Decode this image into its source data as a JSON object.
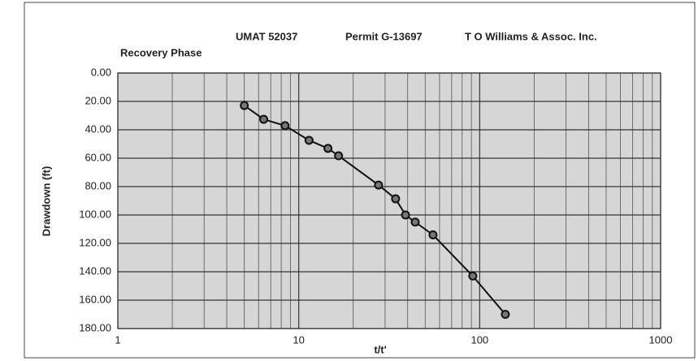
{
  "chart_data": {
    "type": "line",
    "title": [
      "UMAT 52037",
      "Permit G-13697",
      "T O Williams & Assoc. Inc."
    ],
    "subtitle": "Recovery Phase",
    "x_label": "t/t'",
    "y_label": "Drawdown (ft)",
    "x": [
      5,
      6.4,
      8.4,
      11.4,
      14.5,
      16.6,
      27.6,
      34.3,
      38.9,
      44,
      55.2,
      91.6,
      138.6
    ],
    "series": [
      {
        "color": "#111111",
        "values": [
          22.9,
          32.6,
          37.1,
          47.4,
          53.1,
          58.3,
          78.9,
          88.6,
          100,
          105,
          114,
          143,
          170
        ]
      }
    ],
    "xlim": [
      1,
      1000
    ],
    "xscale": "log",
    "xticks": [
      1,
      10,
      100,
      1000
    ],
    "xminorticks": [
      2,
      3,
      4,
      5,
      6,
      7,
      8,
      9,
      20,
      30,
      40,
      50,
      60,
      70,
      80,
      90,
      200,
      300,
      400,
      500,
      600,
      700,
      800,
      900
    ],
    "ylim": [
      0,
      180
    ],
    "yinverted": true,
    "yticks": [
      {
        "value": 0,
        "label": "0.00"
      },
      {
        "value": 20,
        "label": "20.00"
      },
      {
        "value": 40,
        "label": "40.00"
      },
      {
        "value": 60,
        "label": "60.00"
      },
      {
        "value": 80,
        "label": "80.00"
      },
      {
        "value": 100,
        "label": "100.00"
      },
      {
        "value": 120,
        "label": "120.00"
      },
      {
        "value": 140,
        "label": "140.00"
      },
      {
        "value": 160,
        "label": "160.00"
      },
      {
        "value": 180,
        "label": "180.00"
      }
    ],
    "grid": true
  }
}
